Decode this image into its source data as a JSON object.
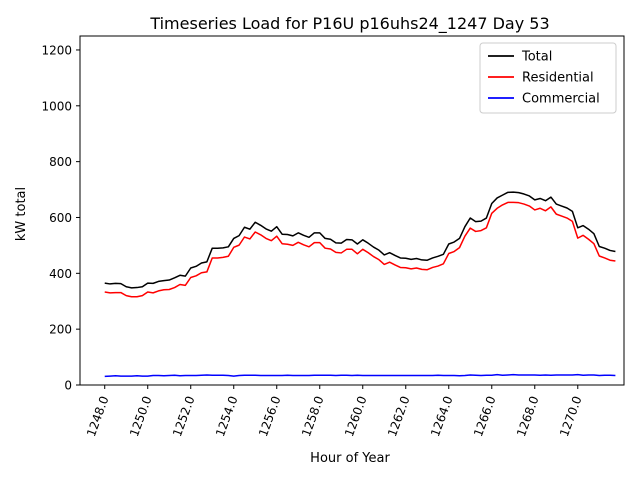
{
  "chart_data": {
    "type": "line",
    "title": "Timeseries Load for P16U p16uhs24_1247  Day 53",
    "xlabel": "Hour of Year",
    "ylabel": "kW total",
    "xlim": [
      1246.85,
      1272.15
    ],
    "ylim": [
      0,
      1250
    ],
    "x_ticks": [
      1248,
      1250,
      1252,
      1254,
      1256,
      1258,
      1260,
      1262,
      1264,
      1266,
      1268,
      1270
    ],
    "x_tick_labels": [
      "1248.0",
      "1250.0",
      "1252.0",
      "1254.0",
      "1256.0",
      "1258.0",
      "1260.0",
      "1262.0",
      "1264.0",
      "1266.0",
      "1268.0",
      "1270.0"
    ],
    "y_ticks": [
      0,
      200,
      400,
      600,
      800,
      1000,
      1200
    ],
    "y_tick_labels": [
      "0",
      "200",
      "400",
      "600",
      "800",
      "1000",
      "1200"
    ],
    "legend_position": "top-right",
    "x_start": 1248.0,
    "x_step": 0.25,
    "series": [
      {
        "name": "Total",
        "color": "#000000",
        "values": [
          365,
          362,
          364,
          363,
          352,
          348,
          349,
          352,
          365,
          364,
          371,
          374,
          376,
          384,
          393,
          390,
          419,
          425,
          437,
          441,
          490,
          490,
          491,
          495,
          525,
          535,
          565,
          558,
          583,
          572,
          559,
          551,
          567,
          540,
          539,
          534,
          545,
          536,
          529,
          545,
          545,
          525,
          522,
          509,
          508,
          521,
          520,
          505,
          520,
          508,
          494,
          483,
          466,
          474,
          464,
          455,
          454,
          450,
          453,
          448,
          447,
          455,
          461,
          468,
          505,
          512,
          525,
          567,
          598,
          585,
          587,
          598,
          650,
          670,
          680,
          690,
          691,
          689,
          684,
          677,
          663,
          668,
          660,
          673,
          648,
          641,
          634,
          622,
          563,
          571,
          558,
          542,
          496,
          490,
          482,
          478
        ]
      },
      {
        "name": "Residential",
        "color": "#ff0000",
        "values": [
          333,
          330,
          331,
          331,
          320,
          316,
          316,
          320,
          333,
          330,
          337,
          341,
          342,
          349,
          360,
          357,
          385,
          391,
          402,
          405,
          455,
          455,
          457,
          461,
          493,
          501,
          530,
          523,
          548,
          538,
          525,
          517,
          533,
          506,
          504,
          500,
          511,
          502,
          495,
          510,
          510,
          490,
          487,
          475,
          473,
          486,
          486,
          470,
          486,
          474,
          460,
          449,
          432,
          440,
          430,
          421,
          420,
          416,
          419,
          414,
          413,
          421,
          426,
          434,
          471,
          478,
          492,
          533,
          562,
          550,
          553,
          563,
          615,
          633,
          645,
          654,
          654,
          653,
          648,
          641,
          627,
          633,
          624,
          638,
          612,
          605,
          598,
          586,
          526,
          536,
          522,
          506,
          462,
          455,
          447,
          444
        ]
      },
      {
        "name": "Commercial",
        "color": "#0000ff",
        "values": [
          31,
          32,
          33,
          32,
          32,
          32,
          33,
          32,
          32,
          34,
          34,
          33,
          34,
          35,
          33,
          34,
          34,
          34,
          35,
          36,
          35,
          35,
          35,
          34,
          32,
          34,
          35,
          35,
          35,
          34,
          34,
          34,
          34,
          34,
          35,
          34,
          34,
          34,
          34,
          35,
          35,
          35,
          35,
          34,
          35,
          35,
          34,
          35,
          34,
          34,
          34,
          34,
          34,
          34,
          34,
          34,
          34,
          34,
          34,
          34,
          34,
          34,
          35,
          34,
          34,
          34,
          33,
          34,
          36,
          35,
          34,
          35,
          35,
          37,
          35,
          36,
          37,
          36,
          36,
          36,
          36,
          35,
          36,
          35,
          36,
          36,
          36,
          36,
          37,
          35,
          36,
          36,
          34,
          35,
          35,
          34
        ]
      }
    ]
  }
}
